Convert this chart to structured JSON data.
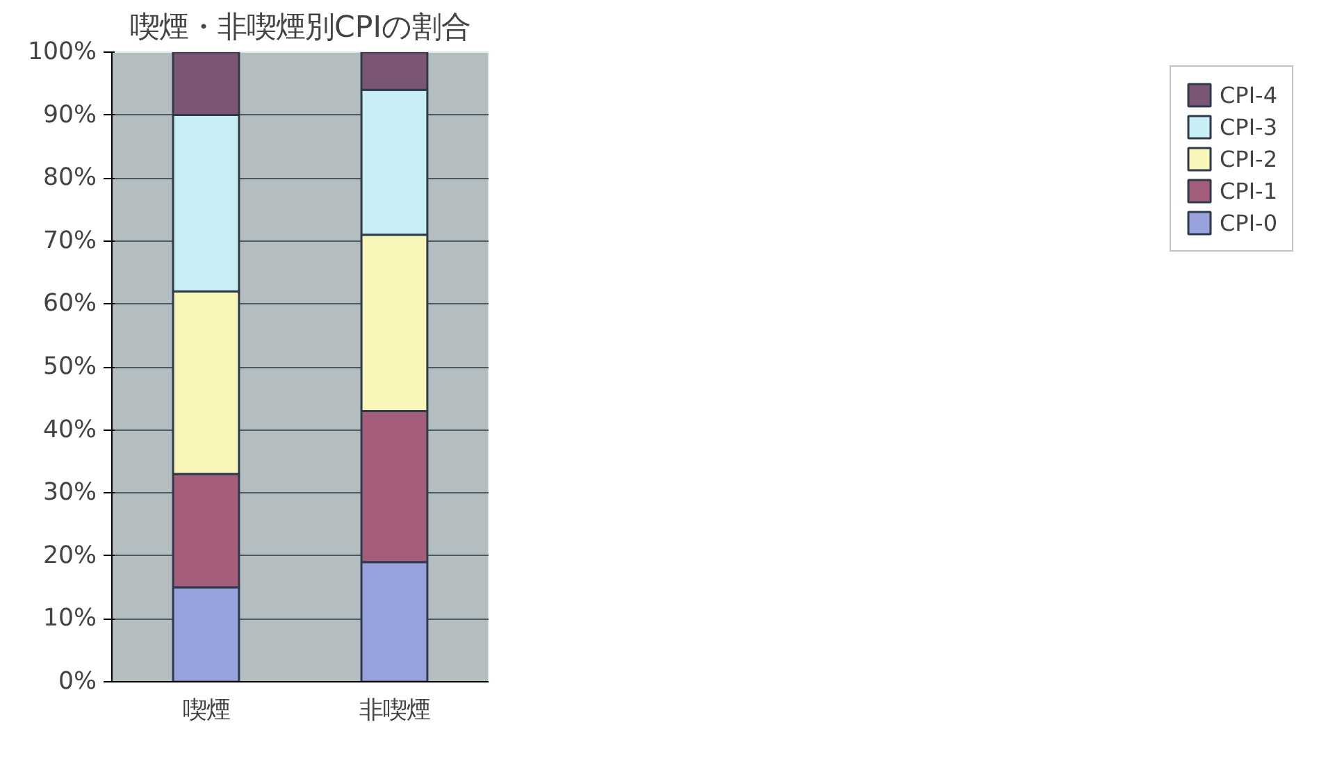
{
  "chart_data": {
    "type": "bar",
    "title": "喫煙・非喫煙別CPIの割合",
    "categories": [
      "喫煙",
      "非喫煙"
    ],
    "stacked": true,
    "series": [
      {
        "name": "CPI-0",
        "color": "#97a2df",
        "values": [
          15,
          19
        ]
      },
      {
        "name": "CPI-1",
        "color": "#a45d7a",
        "values": [
          18,
          24
        ]
      },
      {
        "name": "CPI-2",
        "color": "#f8f6b8",
        "values": [
          29,
          28
        ]
      },
      {
        "name": "CPI-3",
        "color": "#c8eef6",
        "values": [
          28,
          23
        ]
      },
      {
        "name": "CPI-4",
        "color": "#7a5574",
        "values": [
          10,
          6
        ]
      }
    ],
    "ylim": [
      0,
      100
    ],
    "yticks": [
      {
        "value": 0,
        "label": "0%"
      },
      {
        "value": 10,
        "label": "10%"
      },
      {
        "value": 20,
        "label": "20%"
      },
      {
        "value": 30,
        "label": "30%"
      },
      {
        "value": 40,
        "label": "40%"
      },
      {
        "value": 50,
        "label": "50%"
      },
      {
        "value": 60,
        "label": "60%"
      },
      {
        "value": 70,
        "label": "70%"
      },
      {
        "value": 80,
        "label": "80%"
      },
      {
        "value": 90,
        "label": "90%"
      },
      {
        "value": 100,
        "label": "100%"
      }
    ],
    "grid": "y",
    "legend": "right"
  }
}
